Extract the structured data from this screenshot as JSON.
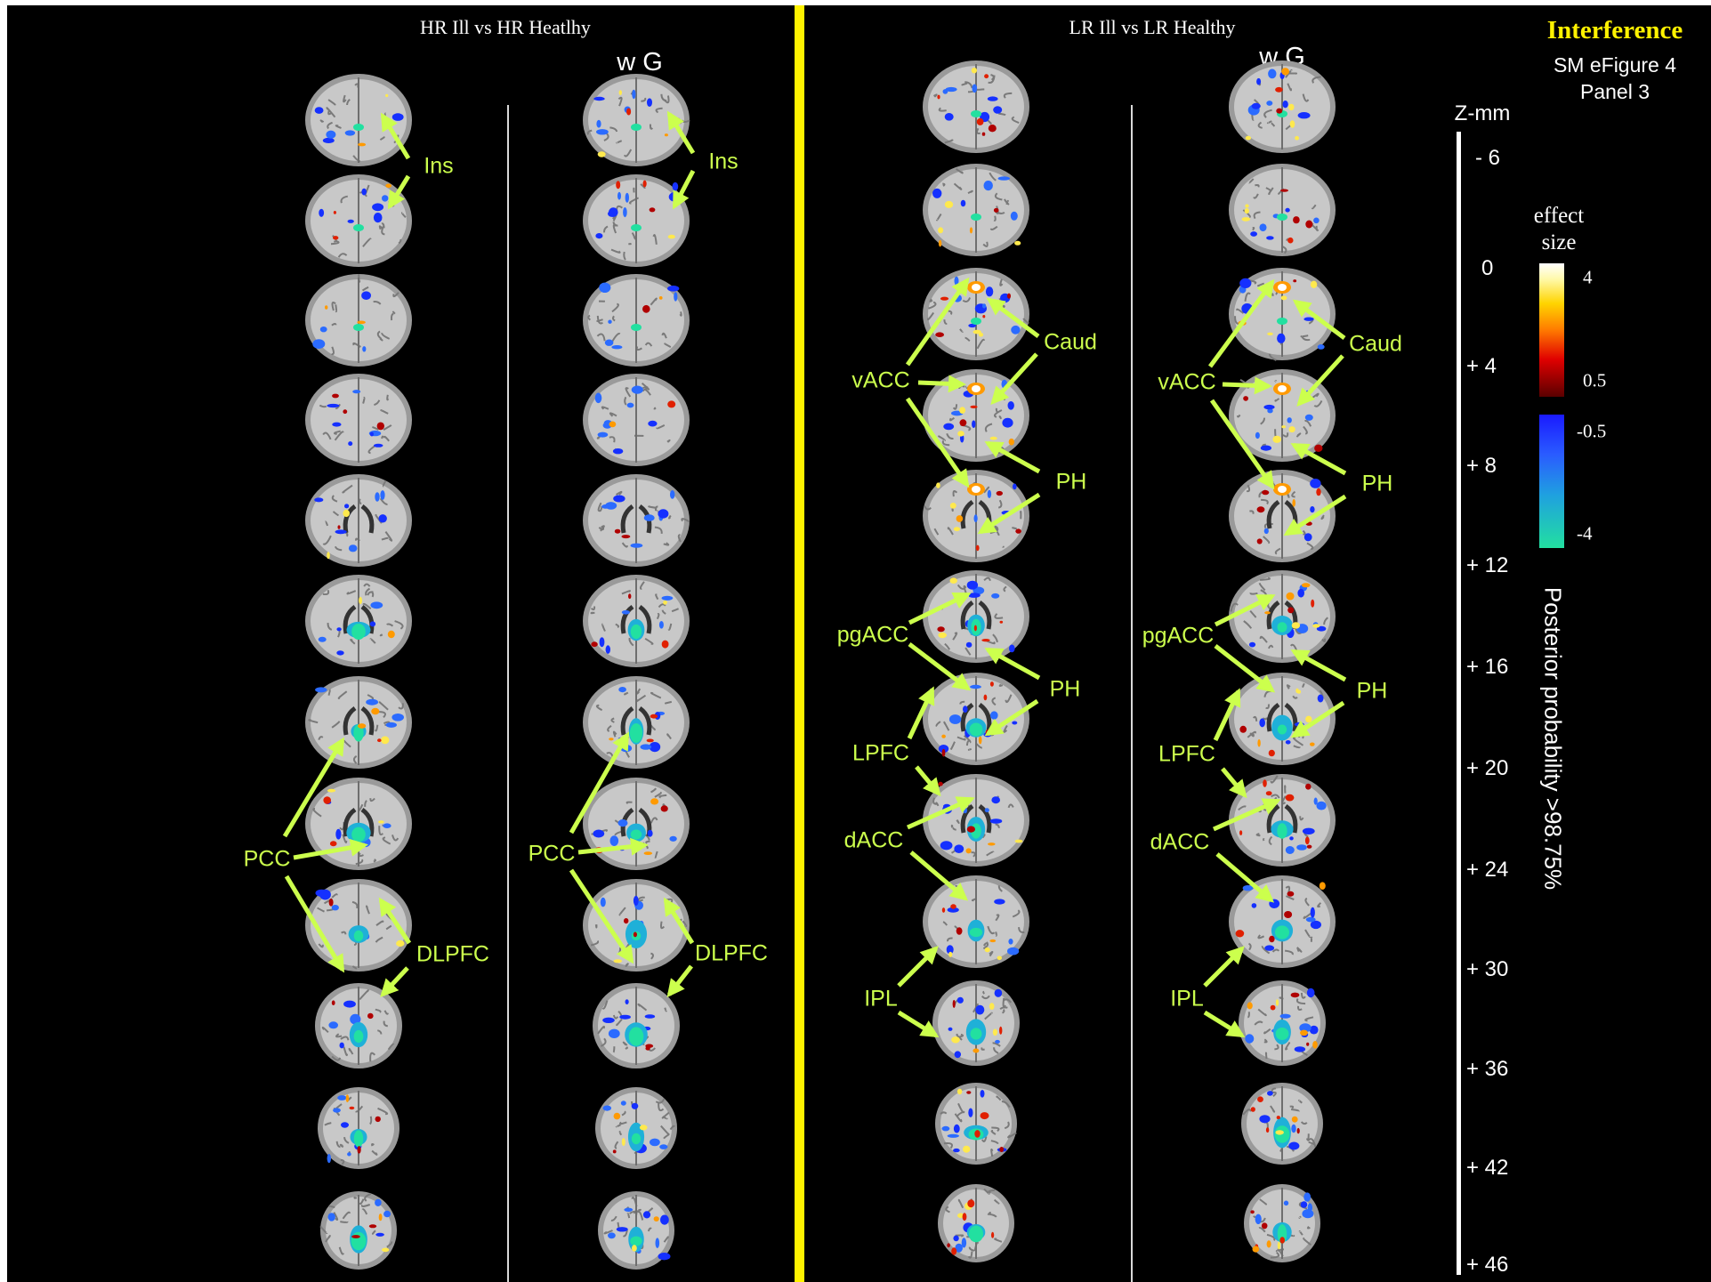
{
  "figure": {
    "title": "Interference",
    "subtitle_line1": "SM eFigure 4",
    "subtitle_line2": "Panel 3"
  },
  "panels": {
    "left_title": "HR Ill vs HR Heatlhy",
    "right_title": "LR Ill vs LR Healthy",
    "wg_label": "w G"
  },
  "z_axis": {
    "title": "Z-mm",
    "ticks": [
      "- 6",
      "0",
      "+ 4",
      "+ 8",
      "+ 12",
      "+ 16",
      "+ 20",
      "+ 24",
      "+ 30",
      "+ 36",
      "+ 42",
      "+ 46"
    ]
  },
  "colorbar": {
    "title_line1": "effect",
    "title_line2": "size",
    "pos_max": "4",
    "pos_min": "0.5",
    "neg_min": "-0.5",
    "neg_max": "-4",
    "pos_colors": [
      "#ffffff",
      "#ffd400",
      "#e00000",
      "#5a0000"
    ],
    "neg_colors": [
      "#1a1aff",
      "#1fa0e0",
      "#22e0a0"
    ]
  },
  "threshold_label": "Posterior probability >98.75%",
  "region_labels": {
    "ins": "Ins",
    "pcc": "PCC",
    "dlpfc": "DLPFC",
    "caud": "Caud",
    "vacc": "vACC",
    "ph": "PH",
    "pgacc": "pgACC",
    "lpfc": "LPFC",
    "dacc": "dACC",
    "ipl": "IPL"
  },
  "colors": {
    "annotation": "#ccff4d",
    "divider": "#fff200",
    "background": "#000000"
  }
}
